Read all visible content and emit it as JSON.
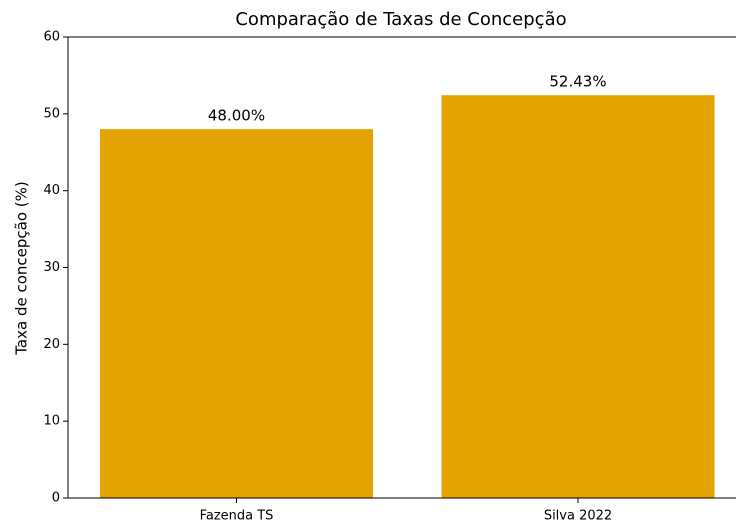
{
  "chart_data": {
    "type": "bar",
    "title": "Comparação de Taxas de Concepção",
    "y_label": "Taxa de concepção (%)",
    "categories": [
      "Fazenda TS",
      "Silva 2022"
    ],
    "values": [
      48.0,
      52.43
    ],
    "value_labels": [
      "48.00%",
      "52.43%"
    ],
    "color": "#e3a400",
    "ylim": [
      0,
      60
    ],
    "yticks": [
      0,
      10,
      20,
      30,
      40,
      50,
      60
    ],
    "grid": false
  }
}
